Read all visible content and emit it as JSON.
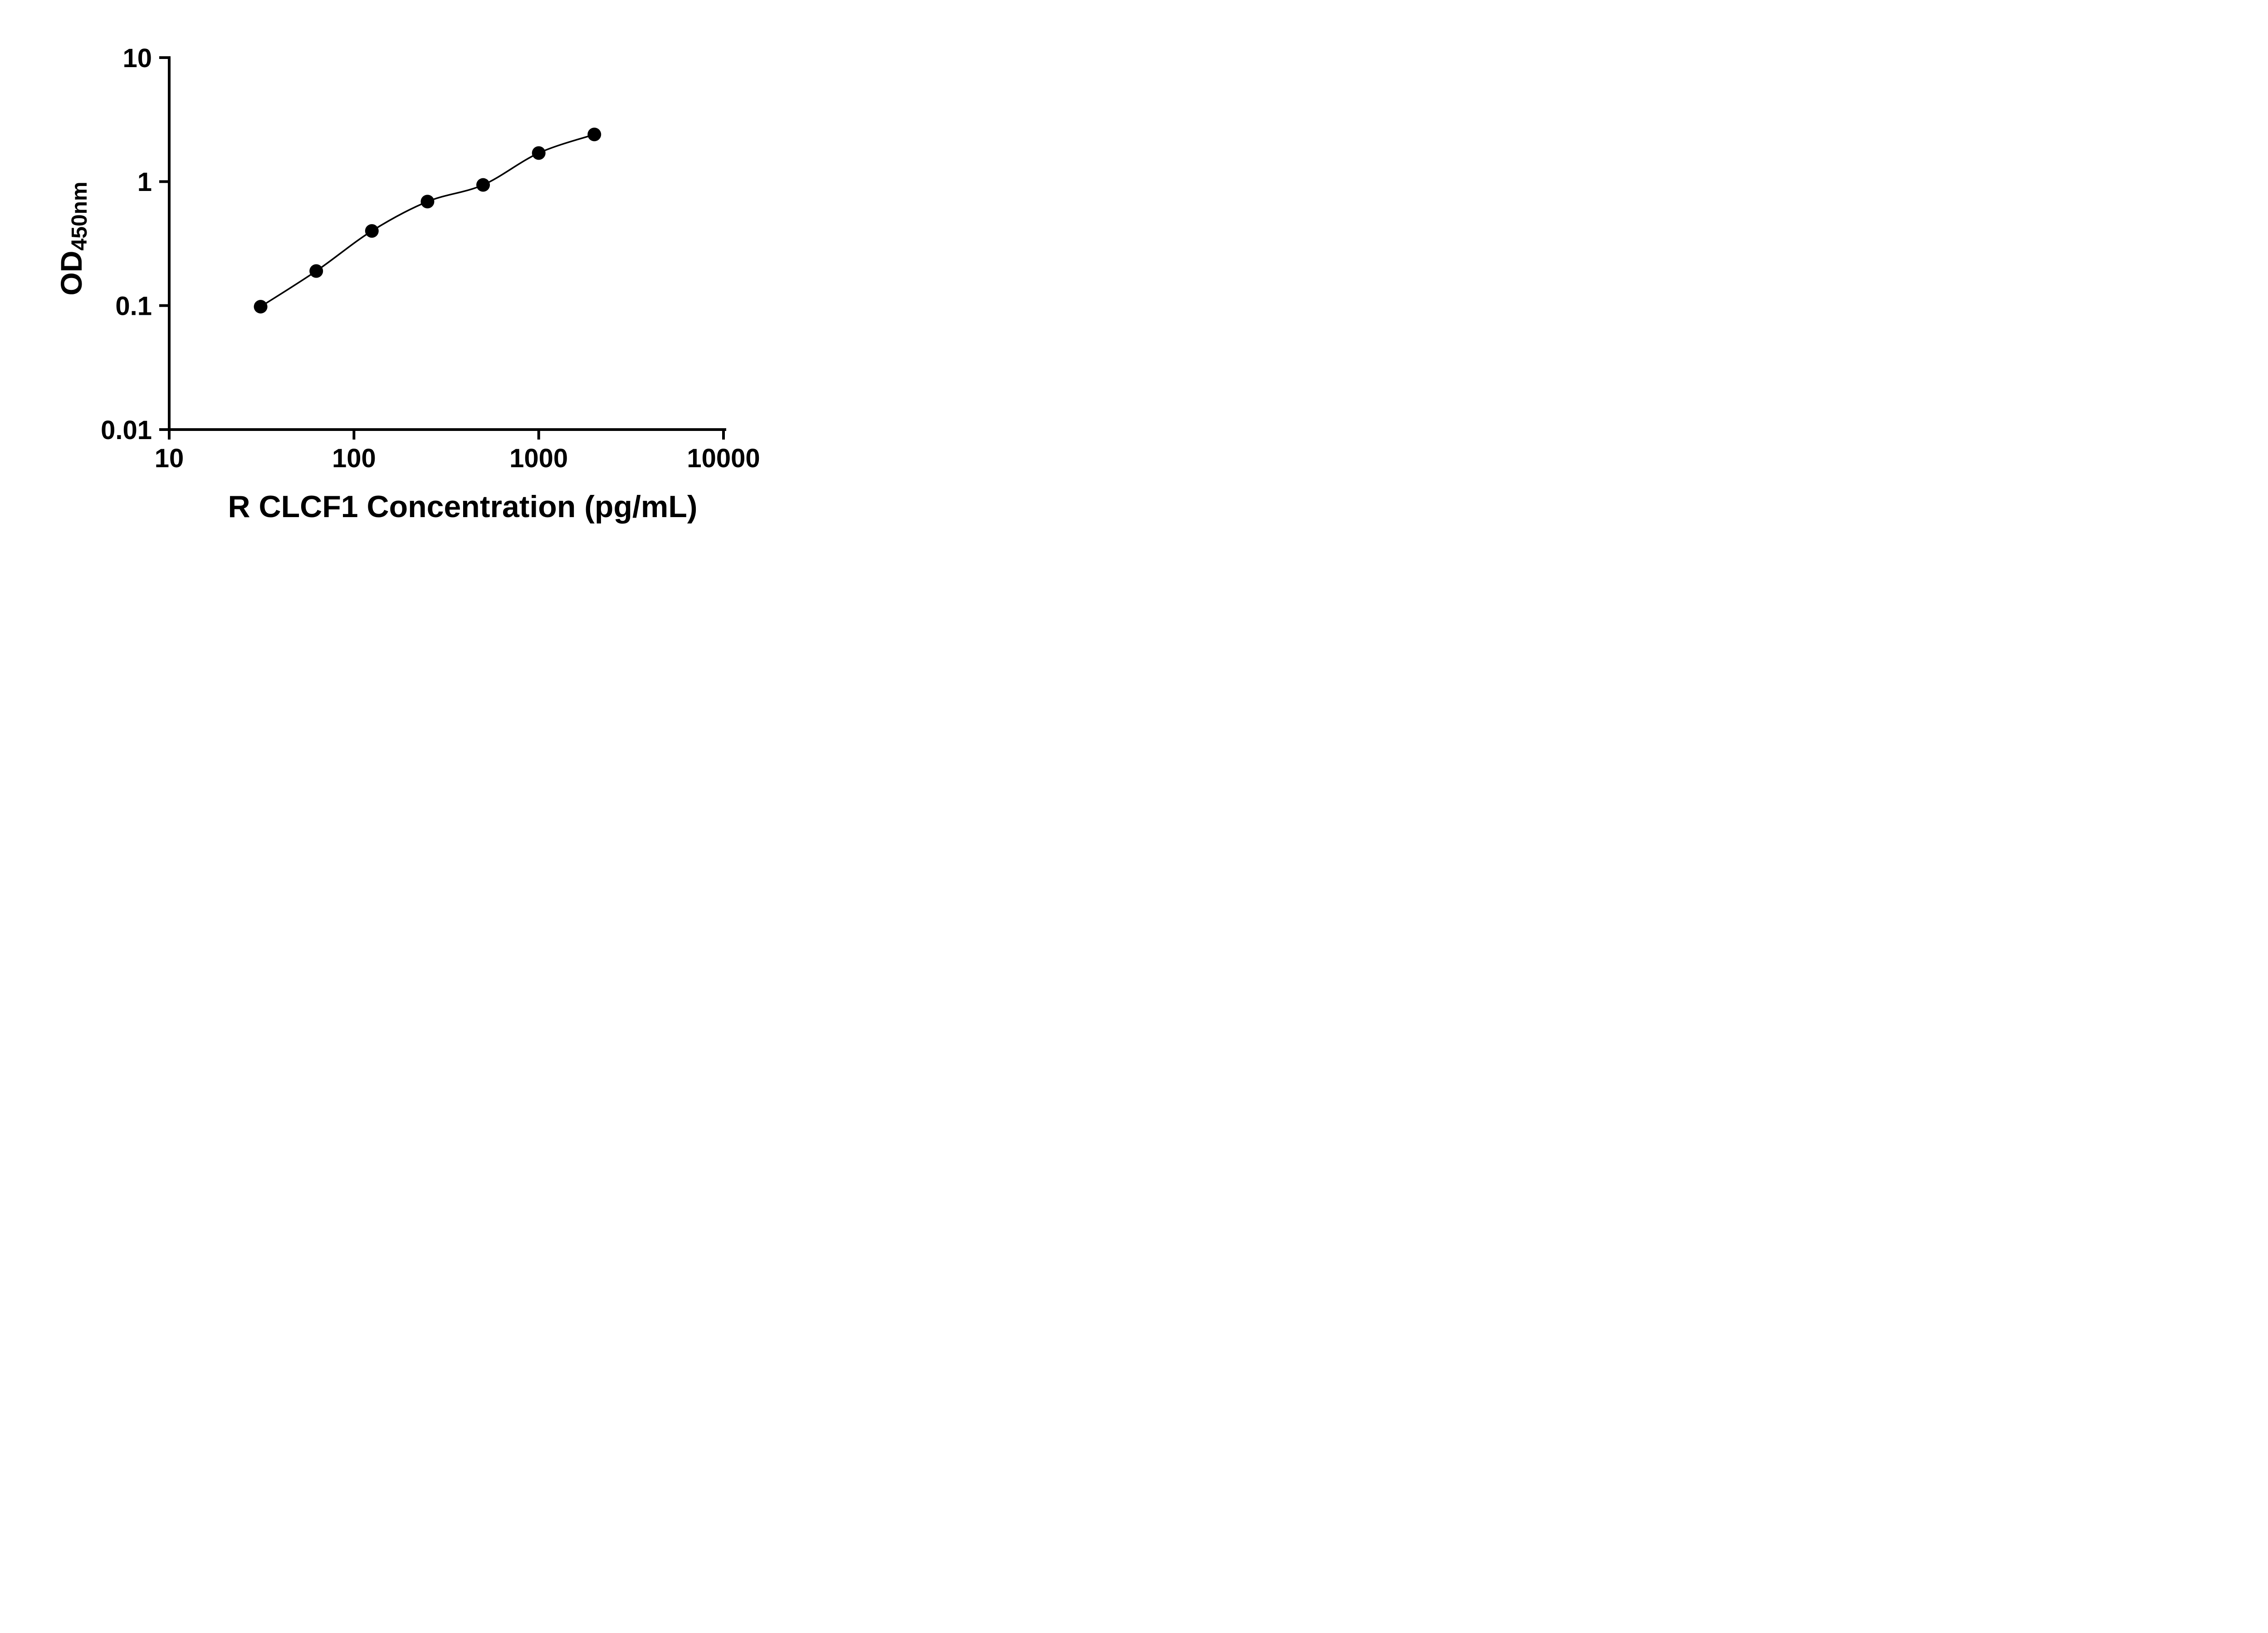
{
  "chart_data": {
    "type": "scatter",
    "title": "",
    "xlabel": "R CLCF1 Concentration (pg/mL)",
    "ylabel_main": "OD",
    "ylabel_sub": "450nm",
    "x_scale": "log10",
    "y_scale": "log10",
    "xlim": [
      10,
      10000
    ],
    "ylim": [
      0.01,
      10
    ],
    "x_ticks": [
      10,
      100,
      1000,
      10000
    ],
    "x_tick_labels": [
      "10",
      "100",
      "1000",
      "10000"
    ],
    "y_ticks": [
      0.01,
      0.1,
      1,
      10
    ],
    "y_tick_labels": [
      "0.01",
      "0.1",
      "1",
      "10"
    ],
    "grid": false,
    "legend": "none",
    "fit_line": true,
    "points": [
      {
        "x": 31.25,
        "y": 0.098
      },
      {
        "x": 62.5,
        "y": 0.19
      },
      {
        "x": 125,
        "y": 0.4
      },
      {
        "x": 250,
        "y": 0.69
      },
      {
        "x": 500,
        "y": 0.94
      },
      {
        "x": 1000,
        "y": 1.7
      },
      {
        "x": 2000,
        "y": 2.4
      }
    ],
    "colors": {
      "axis": "#000000",
      "marker": "#000000",
      "line": "#000000",
      "background": "#ffffff"
    }
  }
}
